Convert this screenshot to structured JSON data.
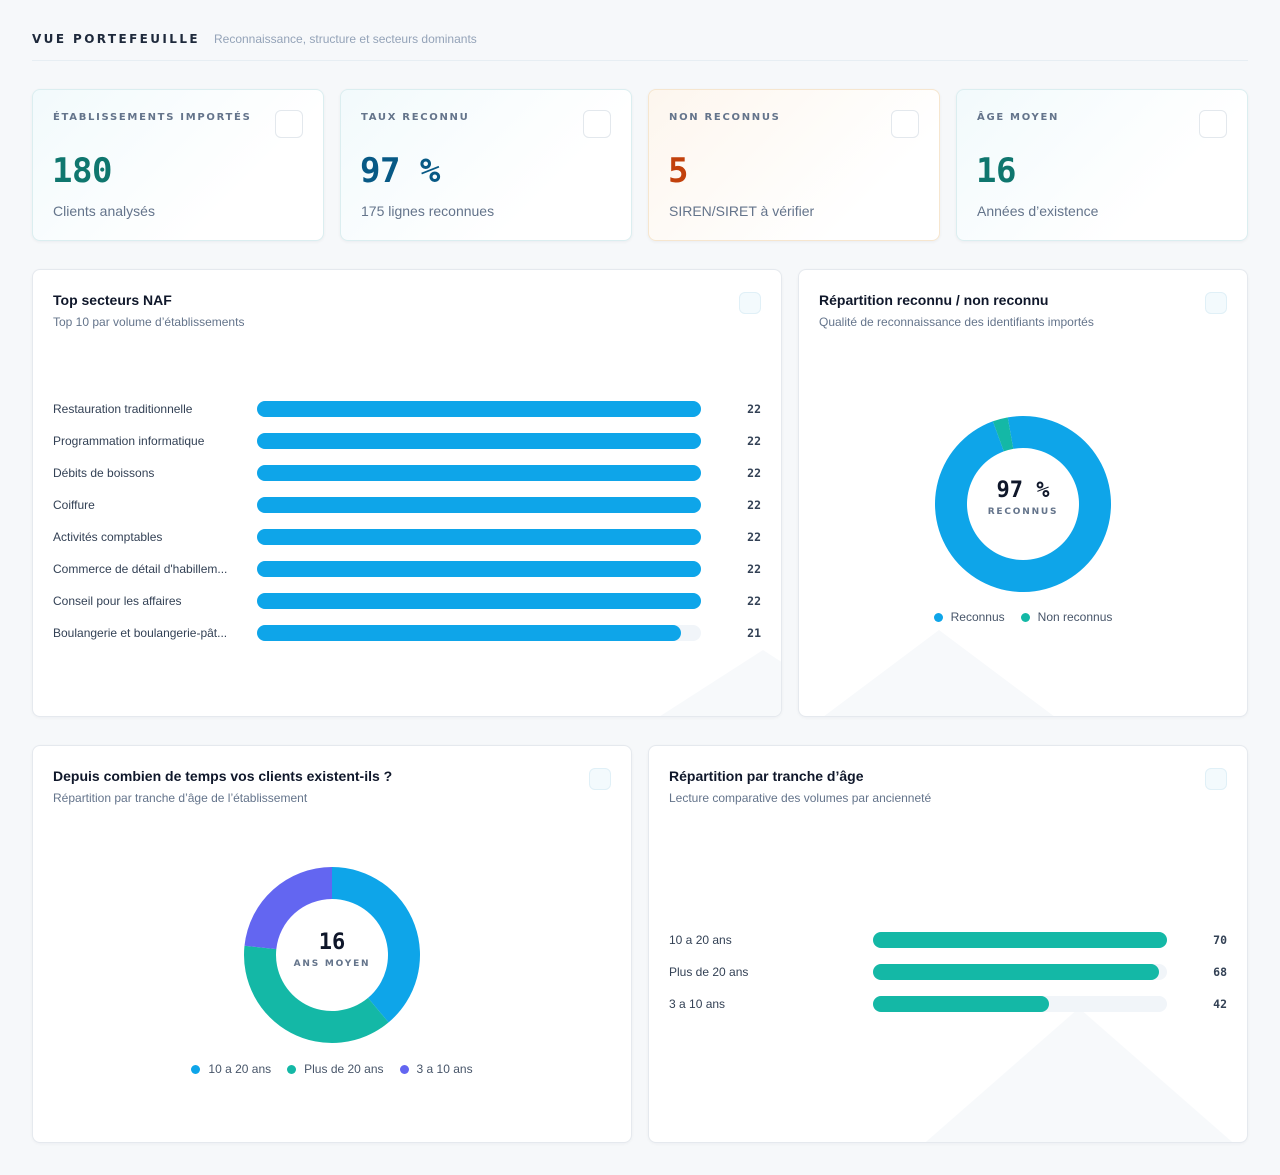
{
  "header": {
    "title": "VUE PORTEFEUILLE",
    "subtitle": "Reconnaissance, structure et secteurs dominants"
  },
  "kpis": [
    {
      "label": "ÉTABLISSEMENTS IMPORTÉS",
      "value": "180",
      "sub": "Clients analysés",
      "color": "#0f766e"
    },
    {
      "label": "TAUX RECONNU",
      "value": "97 %",
      "sub": "175 lignes reconnues",
      "color": "#075985"
    },
    {
      "label": "NON RECONNUS",
      "value": "5",
      "sub": "SIREN/SIRET à vérifier",
      "color": "#c2410c"
    },
    {
      "label": "ÂGE MOYEN",
      "value": "16",
      "sub": "Années d’existence",
      "color": "#0f766e"
    }
  ],
  "naf_card": {
    "title": "Top secteurs NAF",
    "subtitle": "Top 10 par volume d’établissements",
    "bar_color": "#0ea5e9"
  },
  "recog_card": {
    "title": "Répartition reconnu / non reconnu",
    "subtitle": "Qualité de reconnaissance des identifiants importés",
    "center_value": "97 %",
    "center_label": "RECONNUS"
  },
  "age_donut_card": {
    "title": "Depuis combien de temps vos clients existent-ils ?",
    "subtitle": "Répartition par tranche d’âge de l’établissement",
    "center_value": "16",
    "center_label": "ANS MOYEN"
  },
  "age_bar_card": {
    "title": "Répartition par tranche d’âge",
    "subtitle": "Lecture comparative des volumes par ancienneté",
    "bar_color": "#14b8a6"
  },
  "chart_data": [
    {
      "type": "bar",
      "orientation": "horizontal",
      "categories": [
        "Restauration traditionnelle",
        "Programmation informatique",
        "Débits de boissons",
        "Coiffure",
        "Activités comptables",
        "Commerce de détail d'habillem...",
        "Conseil pour les affaires",
        "Boulangerie et boulangerie-pât..."
      ],
      "values": [
        22,
        22,
        22,
        22,
        22,
        22,
        22,
        21
      ],
      "xlim": [
        0,
        22
      ]
    },
    {
      "type": "pie",
      "donut": true,
      "categories": [
        "Reconnus",
        "Non reconnus"
      ],
      "values": [
        175,
        5
      ],
      "colors": [
        "#0ea5e9",
        "#14b8a6"
      ],
      "legend": "bottom"
    },
    {
      "type": "pie",
      "donut": true,
      "categories": [
        "10 a 20 ans",
        "Plus de 20 ans",
        "3 a 10 ans"
      ],
      "values": [
        70,
        68,
        42
      ],
      "colors": [
        "#0ea5e9",
        "#14b8a6",
        "#6366f1"
      ],
      "legend": "bottom"
    },
    {
      "type": "bar",
      "orientation": "horizontal",
      "categories": [
        "10 a 20 ans",
        "Plus de 20 ans",
        "3 a 10 ans"
      ],
      "values": [
        70,
        68,
        42
      ],
      "xlim": [
        0,
        70
      ]
    }
  ]
}
